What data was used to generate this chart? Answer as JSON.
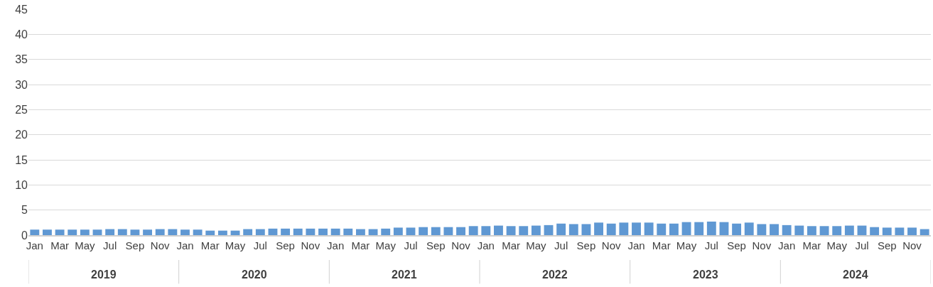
{
  "chart_data": {
    "type": "bar",
    "categories": [
      "Jan",
      null,
      "Mar",
      null,
      "May",
      null,
      "Jul",
      null,
      "Sep",
      null,
      "Nov",
      null,
      "Jan",
      null,
      "Mar",
      null,
      "May",
      null,
      "Jul",
      null,
      "Sep",
      null,
      "Nov",
      null,
      "Jan",
      null,
      "Mar",
      null,
      "May",
      null,
      "Jul",
      null,
      "Sep",
      null,
      "Nov",
      null,
      "Jan",
      null,
      "Mar",
      null,
      "May",
      null,
      "Jul",
      null,
      "Sep",
      null,
      "Nov",
      null,
      "Jan",
      null,
      "Mar",
      null,
      "May",
      null,
      "Jul",
      null,
      "Sep",
      null,
      "Nov",
      null,
      "Jan",
      null,
      "Mar",
      null,
      "May",
      null,
      "Jul",
      null,
      "Sep",
      null,
      "Nov",
      null
    ],
    "values": [
      1.1,
      1.1,
      1.1,
      1.1,
      1.1,
      1.1,
      1.2,
      1.2,
      1.1,
      1.1,
      1.2,
      1.2,
      1.1,
      1.1,
      0.9,
      0.9,
      0.9,
      1.2,
      1.2,
      1.3,
      1.3,
      1.3,
      1.3,
      1.3,
      1.3,
      1.3,
      1.2,
      1.2,
      1.3,
      1.5,
      1.5,
      1.6,
      1.6,
      1.6,
      1.6,
      1.8,
      1.8,
      1.9,
      1.8,
      1.8,
      1.9,
      2.0,
      2.3,
      2.2,
      2.2,
      2.5,
      2.3,
      2.5,
      2.5,
      2.5,
      2.3,
      2.3,
      2.6,
      2.6,
      2.7,
      2.6,
      2.3,
      2.5,
      2.2,
      2.2,
      2.0,
      1.9,
      1.8,
      1.8,
      1.8,
      1.9,
      1.9,
      1.6,
      1.5,
      1.5,
      1.5,
      1.2
    ],
    "color": "#5f98d3",
    "ylim": [
      0,
      45
    ],
    "yticks": [
      0,
      5,
      10,
      15,
      20,
      25,
      30,
      35,
      40,
      45
    ],
    "grid": "y",
    "annotations": [
      "2019",
      "2020",
      "2021",
      "2022",
      "2023",
      "2024"
    ]
  }
}
